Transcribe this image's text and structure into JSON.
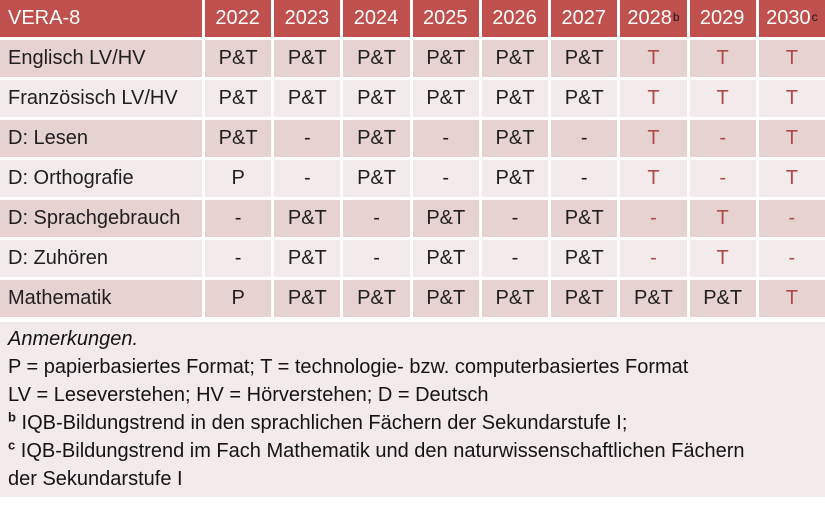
{
  "table": {
    "title": "VERA-8",
    "years": [
      {
        "label": "2022",
        "sup": ""
      },
      {
        "label": "2023",
        "sup": ""
      },
      {
        "label": "2024",
        "sup": ""
      },
      {
        "label": "2025",
        "sup": ""
      },
      {
        "label": "2026",
        "sup": ""
      },
      {
        "label": "2027",
        "sup": ""
      },
      {
        "label": "2028",
        "sup": "b"
      },
      {
        "label": "2029",
        "sup": ""
      },
      {
        "label": "2030",
        "sup": "c"
      }
    ],
    "rows": [
      {
        "label": "Englisch LV/HV",
        "values": [
          "P&T",
          "P&T",
          "P&T",
          "P&T",
          "P&T",
          "P&T",
          "T",
          "T",
          "T"
        ]
      },
      {
        "label": "Französisch LV/HV",
        "values": [
          "P&T",
          "P&T",
          "P&T",
          "P&T",
          "P&T",
          "P&T",
          "T",
          "T",
          "T"
        ]
      },
      {
        "label": "D: Lesen",
        "values": [
          "P&T",
          "-",
          "P&T",
          "-",
          "P&T",
          "-",
          "T",
          "-",
          "T"
        ]
      },
      {
        "label": "D: Orthografie",
        "values": [
          "P",
          "-",
          "P&T",
          "-",
          "P&T",
          "-",
          "T",
          "-",
          "T"
        ]
      },
      {
        "label": "D: Sprachgebrauch",
        "values": [
          "-",
          "P&T",
          "-",
          "P&T",
          "-",
          "P&T",
          "-",
          "T",
          "-"
        ]
      },
      {
        "label": "D: Zuhören",
        "values": [
          "-",
          "P&T",
          "-",
          "P&T",
          "-",
          "P&T",
          "-",
          "T",
          "-"
        ]
      },
      {
        "label": "Mathematik",
        "values": [
          "P",
          "P&T",
          "P&T",
          "P&T",
          "P&T",
          "P&T",
          "P&T",
          "P&T",
          "T"
        ]
      }
    ]
  },
  "notes": {
    "title": "Anmerkungen.",
    "legend_format": "P = papierbasiertes Format; T = technologie- bzw. computerbasiertes Format",
    "legend_abbrev": "LV = Leseverstehen; HV = Hörverstehen; D = Deutsch",
    "note_b_sup": "b",
    "note_b": "IQB-Bildungstrend in den sprachlichen Fächern der Sekundarstufe I;",
    "note_c_sup": "c",
    "note_c": "IQB-Bildungstrend im Fach Mathematik und den naturwissenschaftlichen Fächern der Sekundarstufe I"
  },
  "colors": {
    "header_bg": "#C0504D",
    "header_text": "#FFFFFF",
    "row_dark": "#E7D2D2",
    "row_light": "#F3EBEB",
    "tech_red": "#AE4B46"
  }
}
